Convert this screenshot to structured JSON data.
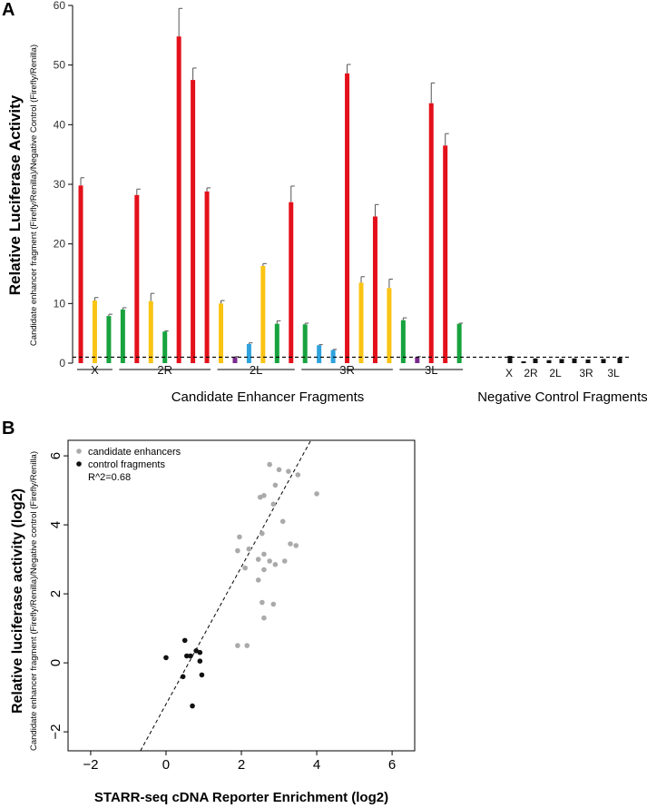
{
  "chart_data": [
    {
      "type": "bar",
      "panel_label": "A",
      "title": "",
      "ylabel": "Relative Luciferase Activity",
      "ylabel_sub": "Candidate enhancer fragment (Firefly/Renilla)/Negative Control (Firefly/Renilla)",
      "ylim": [
        0,
        60
      ],
      "yticks": [
        "0",
        "10",
        "20",
        "30",
        "40",
        "50",
        "60"
      ],
      "reference_line": {
        "value": 1,
        "style": "dashed"
      },
      "candidate_group_label": "Candidate Enhancer Fragments",
      "control_group_label": "Negative Control Fragments",
      "candidate_chromosomes": [
        "X",
        "2R",
        "2L",
        "3R",
        "3L"
      ],
      "control_labels": [
        "X",
        "2R",
        "2L",
        "3R",
        "3L"
      ],
      "candidate_bars": [
        {
          "chrom": "X",
          "value": 29.8,
          "err": 1.3,
          "color": "#e3111b"
        },
        {
          "chrom": "X",
          "value": 10.5,
          "err": 0.5,
          "color": "#f9c413"
        },
        {
          "chrom": "X",
          "value": 7.9,
          "err": 0.3,
          "color": "#17a33e"
        },
        {
          "chrom": "2R",
          "value": 9.0,
          "err": 0.3,
          "color": "#17a33e"
        },
        {
          "chrom": "2R",
          "value": 28.2,
          "err": 1.0,
          "color": "#e3111b"
        },
        {
          "chrom": "2R",
          "value": 10.4,
          "err": 1.3,
          "color": "#f9c413"
        },
        {
          "chrom": "2R",
          "value": 5.3,
          "err": 0.1,
          "color": "#17a33e"
        },
        {
          "chrom": "2R",
          "value": 54.8,
          "err": 4.7,
          "color": "#e3111b"
        },
        {
          "chrom": "2R",
          "value": 47.5,
          "err": 2.0,
          "color": "#e3111b"
        },
        {
          "chrom": "2R",
          "value": 28.8,
          "err": 0.6,
          "color": "#e3111b"
        },
        {
          "chrom": "2L",
          "value": 10.0,
          "err": 0.5,
          "color": "#f9c413"
        },
        {
          "chrom": "2L",
          "value": 1.0,
          "err": 0.1,
          "color": "#7a2a8c"
        },
        {
          "chrom": "2L",
          "value": 3.2,
          "err": 0.2,
          "color": "#2ea3dd"
        },
        {
          "chrom": "2L",
          "value": 16.3,
          "err": 0.4,
          "color": "#f9c413"
        },
        {
          "chrom": "2L",
          "value": 6.6,
          "err": 0.5,
          "color": "#17a33e"
        },
        {
          "chrom": "2L",
          "value": 27.0,
          "err": 2.7,
          "color": "#e3111b"
        },
        {
          "chrom": "3R",
          "value": 6.5,
          "err": 0.2,
          "color": "#17a33e"
        },
        {
          "chrom": "3R",
          "value": 3.0,
          "err": 0.1,
          "color": "#2ea3dd"
        },
        {
          "chrom": "3R",
          "value": 2.2,
          "err": 0.1,
          "color": "#2ea3dd"
        },
        {
          "chrom": "3R",
          "value": 48.6,
          "err": 1.5,
          "color": "#e3111b"
        },
        {
          "chrom": "3R",
          "value": 13.5,
          "err": 1.0,
          "color": "#f9c413"
        },
        {
          "chrom": "3R",
          "value": 24.6,
          "err": 2.0,
          "color": "#e3111b"
        },
        {
          "chrom": "3R",
          "value": 12.6,
          "err": 1.5,
          "color": "#f9c413"
        },
        {
          "chrom": "3L",
          "value": 7.2,
          "err": 0.4,
          "color": "#17a33e"
        },
        {
          "chrom": "3L",
          "value": 1.0,
          "err": 0.1,
          "color": "#7a2a8c"
        },
        {
          "chrom": "3L",
          "value": 43.6,
          "err": 3.4,
          "color": "#e3111b"
        },
        {
          "chrom": "3L",
          "value": 36.5,
          "err": 2.0,
          "color": "#e3111b"
        },
        {
          "chrom": "3L",
          "value": 6.6,
          "err": 0.1,
          "color": "#17a33e"
        }
      ],
      "control_bars": [
        {
          "chrom": "X",
          "value": 1.2,
          "color": "#111111"
        },
        {
          "chrom": "2R",
          "value": 0.3,
          "color": "#111111"
        },
        {
          "chrom": "2R",
          "value": 0.8,
          "color": "#111111"
        },
        {
          "chrom": "2L",
          "value": 0.5,
          "color": "#111111"
        },
        {
          "chrom": "2L",
          "value": 0.7,
          "color": "#111111"
        },
        {
          "chrom": "3R",
          "value": 0.8,
          "color": "#111111"
        },
        {
          "chrom": "3R",
          "value": 0.6,
          "color": "#111111"
        },
        {
          "chrom": "3L",
          "value": 0.7,
          "color": "#111111"
        },
        {
          "chrom": "3L",
          "value": 0.9,
          "color": "#111111"
        }
      ]
    },
    {
      "type": "scatter",
      "panel_label": "B",
      "title": "",
      "xlabel": "STARR-seq cDNA Reporter Enrichment (log2)",
      "ylabel": "Relative luciferase activity (log2)",
      "ylabel_sub": "Candidate enhancer fragment (Firefly/Renilla)/Negative control (Firefly/Renilla)",
      "xlim": [
        -2.6,
        6.6
      ],
      "ylim": [
        -2.55,
        6.45
      ],
      "xticks": [
        -2,
        0,
        2,
        4,
        6
      ],
      "yticks": [
        -2,
        0,
        2,
        4,
        6
      ],
      "xtick_labels": [
        "−2",
        "0",
        "2",
        "4",
        "6"
      ],
      "ytick_labels": [
        "−2",
        "0",
        "2",
        "4",
        "6"
      ],
      "legend": {
        "position": "top-left",
        "entries": [
          {
            "label": "candidate enhancers",
            "color": "#aaaaaa"
          },
          {
            "label": "control fragments",
            "color": "#111111"
          }
        ],
        "note": "R^2=0.68"
      },
      "fit_line": {
        "style": "dashed",
        "slope": 1.99,
        "intercept": -1.2
      },
      "series": [
        {
          "name": "candidate enhancers",
          "color": "#aaaaaa",
          "points": [
            [
              2.75,
              5.75
            ],
            [
              3.0,
              5.6
            ],
            [
              3.25,
              5.55
            ],
            [
              3.5,
              5.45
            ],
            [
              2.9,
              5.15
            ],
            [
              4.0,
              4.9
            ],
            [
              2.5,
              4.8
            ],
            [
              2.6,
              4.85
            ],
            [
              2.85,
              4.6
            ],
            [
              3.1,
              4.1
            ],
            [
              1.95,
              3.65
            ],
            [
              2.55,
              3.75
            ],
            [
              2.2,
              3.3
            ],
            [
              1.9,
              3.25
            ],
            [
              3.3,
              3.45
            ],
            [
              3.45,
              3.4
            ],
            [
              2.6,
              3.15
            ],
            [
              2.45,
              3.0
            ],
            [
              2.75,
              2.95
            ],
            [
              3.15,
              2.95
            ],
            [
              2.1,
              2.75
            ],
            [
              2.9,
              2.85
            ],
            [
              2.6,
              2.7
            ],
            [
              2.45,
              2.4
            ],
            [
              2.55,
              1.75
            ],
            [
              2.85,
              1.7
            ],
            [
              2.6,
              1.3
            ],
            [
              1.9,
              0.5
            ],
            [
              2.15,
              0.5
            ]
          ]
        },
        {
          "name": "control fragments",
          "color": "#111111",
          "points": [
            [
              0.5,
              0.65
            ],
            [
              0.8,
              0.35
            ],
            [
              0.9,
              0.3
            ],
            [
              0.55,
              0.2
            ],
            [
              0.65,
              0.2
            ],
            [
              0.0,
              0.15
            ],
            [
              0.9,
              0.05
            ],
            [
              0.95,
              -0.35
            ],
            [
              0.45,
              -0.4
            ],
            [
              0.7,
              -1.25
            ]
          ]
        }
      ]
    }
  ]
}
